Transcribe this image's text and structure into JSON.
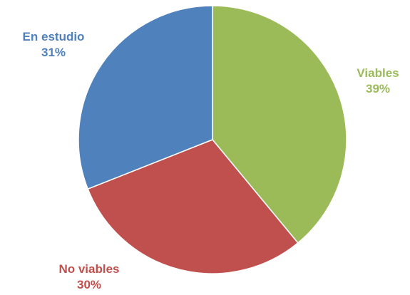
{
  "chart_data": {
    "type": "pie",
    "slices": [
      {
        "label": "Viables",
        "percent_label": "39%",
        "value": 39,
        "color": "#9BBB59"
      },
      {
        "label": "No viables",
        "percent_label": "30%",
        "value": 30,
        "color": "#C0504D"
      },
      {
        "label": "En estudio",
        "percent_label": "31%",
        "value": 31,
        "color": "#4F81BD"
      }
    ],
    "start_angle": "12 o'clock",
    "direction": "clockwise"
  }
}
